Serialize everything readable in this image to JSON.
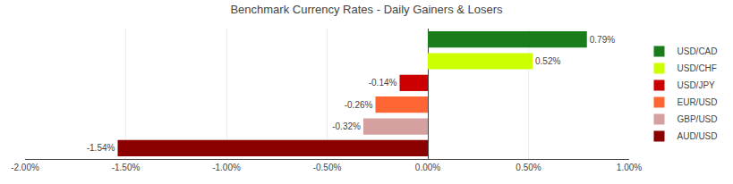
{
  "chart_data": {
    "type": "bar",
    "orientation": "horizontal",
    "title": "Benchmark Currency Rates - Daily Gainers & Losers",
    "categories": [
      "USD/CAD",
      "USD/CHF",
      "USD/JPY",
      "EUR/USD",
      "GBP/USD",
      "AUD/USD"
    ],
    "values": [
      0.79,
      0.52,
      -0.14,
      -0.26,
      -0.32,
      -1.54
    ],
    "value_labels": [
      "0.79%",
      "0.52%",
      "-0.14%",
      "-0.26%",
      "-0.32%",
      "-1.54%"
    ],
    "colors": [
      "#1a7c1a",
      "#ccff00",
      "#cc0000",
      "#ff6633",
      "#d4a0a0",
      "#8b0000"
    ],
    "data_labels": true,
    "xlim": [
      -2.0,
      1.0
    ],
    "xticks": [
      {
        "value": -2.0,
        "label": "-2.00%"
      },
      {
        "value": -1.5,
        "label": "-1.50%"
      },
      {
        "value": -1.0,
        "label": "-1.00%"
      },
      {
        "value": -0.5,
        "label": "-0.50%"
      },
      {
        "value": 0.0,
        "label": "0.00%"
      },
      {
        "value": 0.5,
        "label": "0.50%"
      },
      {
        "value": 1.0,
        "label": "1.00%"
      }
    ],
    "tick_labels": "x",
    "grid": true,
    "legend": "right"
  }
}
